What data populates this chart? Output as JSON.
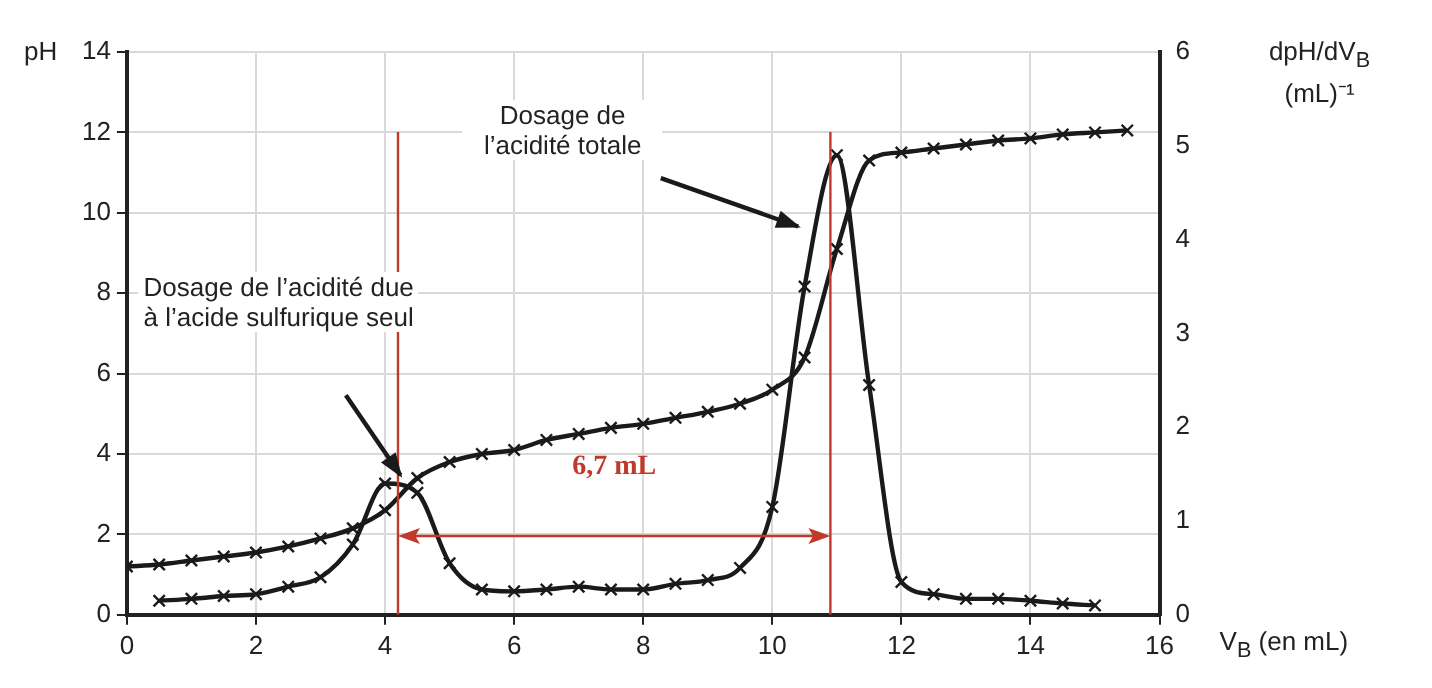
{
  "chart_data": {
    "type": "line",
    "xlabel": "V$_{B}$ (en mL)",
    "ylabel": "pH",
    "y2label": "dpH/dV$_{B}$ (mL)⁻¹",
    "xlim": [
      0,
      16
    ],
    "xticks": [
      0,
      2,
      4,
      6,
      8,
      10,
      12,
      14,
      16
    ],
    "ylim": [
      0,
      14
    ],
    "yticks": [
      0,
      2,
      4,
      6,
      8,
      10,
      12,
      14
    ],
    "y2lim": [
      0,
      6
    ],
    "y2ticks": [
      0,
      1,
      2,
      3,
      4,
      5,
      6
    ],
    "grid": true,
    "legend": false,
    "marker": "cross",
    "line_style": "solid",
    "series": [
      {
        "color": "#1a1a1a",
        "x": [
          0,
          0.5,
          1,
          1.5,
          2,
          2.5,
          3,
          3.5,
          4,
          4.5,
          5,
          5.5,
          6,
          6.5,
          7,
          7.5,
          8,
          8.5,
          9,
          9.5,
          10,
          10.5,
          11,
          11.5,
          12,
          12.5,
          13,
          13.5,
          14,
          14.5,
          15,
          15.5
        ],
        "values": [
          1.2,
          1.25,
          1.35,
          1.45,
          1.55,
          1.7,
          1.9,
          2.15,
          2.6,
          3.4,
          3.8,
          4.0,
          4.1,
          4.35,
          4.5,
          4.65,
          4.75,
          4.9,
          5.05,
          5.25,
          5.6,
          6.4,
          9.1,
          11.3,
          11.5,
          11.6,
          11.7,
          11.8,
          11.85,
          11.95,
          12.0,
          12.05
        ]
      },
      {
        "color": "#1a1a1a",
        "axis": "y2",
        "x": [
          0.5,
          1,
          1.5,
          2,
          2.5,
          3,
          3.5,
          4,
          4.5,
          5,
          5.5,
          6,
          6.5,
          7,
          7.5,
          8,
          8.5,
          9,
          9.5,
          10,
          10.5,
          11,
          11.5,
          12,
          12.5,
          13,
          13.5,
          14,
          14.5,
          15
        ],
        "values": [
          0.15,
          0.17,
          0.2,
          0.22,
          0.3,
          0.4,
          0.75,
          1.4,
          1.3,
          0.55,
          0.27,
          0.25,
          0.27,
          0.3,
          0.27,
          0.27,
          0.33,
          0.37,
          0.5,
          1.15,
          3.5,
          4.9,
          2.45,
          0.35,
          0.22,
          0.17,
          0.17,
          0.15,
          0.12,
          0.1
        ]
      }
    ],
    "ref_lines": [
      {
        "axis": "x",
        "value": 4.2,
        "color": "#c0392b"
      },
      {
        "axis": "x",
        "value": 10.9,
        "color": "#c0392b"
      }
    ],
    "annotations": [
      "Dosage de l’acidité due à l’acide sulfurique seul",
      "Dosage de l’acidité totale",
      "6,7 mL"
    ]
  }
}
